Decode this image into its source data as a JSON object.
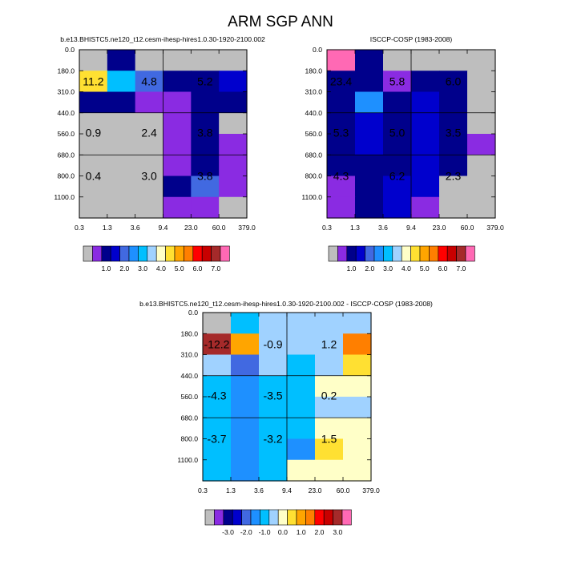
{
  "main_title": "ARM SGP ANN",
  "colors": {
    "missing": "#bebebe",
    "abs_scale": [
      "#bebebe",
      "#8a2be2",
      "#00008b",
      "#0000cd",
      "#4169e1",
      "#1e90ff",
      "#00bfff",
      "#a0d2ff",
      "#ffffc8",
      "#ffe032",
      "#ffa500",
      "#ff7f00",
      "#ff0000",
      "#c80000",
      "#a52a2a",
      "#ff69b4"
    ],
    "diff_scale": [
      "#bebebe",
      "#8a2be2",
      "#00008b",
      "#0000cd",
      "#4169e1",
      "#1e90ff",
      "#00bfff",
      "#a0d2ff",
      "#ffffc8",
      "#ffe032",
      "#ffa500",
      "#ff7f00",
      "#ff0000",
      "#c80000",
      "#a52a2a",
      "#ff69b4"
    ]
  },
  "chart_data": [
    {
      "type": "heatmap",
      "title": "b.e13.BHISTC5.ne120_t12.cesm-ihesp-hires1.0.30-1920-2100.002",
      "x_ticks": [
        "0.3",
        "1.3",
        "3.6",
        "9.4",
        "23.0",
        "60.0",
        "379.0"
      ],
      "y_ticks": [
        "0.0",
        "180.0",
        "310.0",
        "440.0",
        "560.0",
        "680.0",
        "800.0",
        "1100.0"
      ],
      "cells": [
        [
          -1,
          2,
          -1,
          -1,
          -1,
          -1
        ],
        [
          9,
          6,
          4,
          2,
          2,
          3
        ],
        [
          2,
          2,
          1,
          1,
          2,
          2
        ],
        [
          -1,
          -1,
          -1,
          1,
          2,
          -1
        ],
        [
          -1,
          -1,
          -1,
          1,
          2,
          1
        ],
        [
          -1,
          -1,
          -1,
          1,
          2,
          1
        ],
        [
          -1,
          -1,
          -1,
          2,
          4,
          1
        ],
        [
          -1,
          -1,
          -1,
          1,
          1,
          -1
        ]
      ],
      "labels": [
        {
          "text": "11.2",
          "col": 0.5,
          "row": 1.5
        },
        {
          "text": "4.8",
          "col": 2.5,
          "row": 1.5
        },
        {
          "text": "5.2",
          "col": 4.5,
          "row": 1.5
        },
        {
          "text": "0.9",
          "col": 0.5,
          "row": 3.95
        },
        {
          "text": "2.4",
          "col": 2.5,
          "row": 3.95
        },
        {
          "text": "3.8",
          "col": 4.5,
          "row": 3.95
        },
        {
          "text": "0.4",
          "col": 0.5,
          "row": 6.0
        },
        {
          "text": "3.0",
          "col": 2.5,
          "row": 6.0
        },
        {
          "text": "3.8",
          "col": 4.5,
          "row": 6.0
        }
      ]
    },
    {
      "type": "heatmap",
      "title": "ISCCP-COSP (1983-2008)",
      "x_ticks": [
        "0.3",
        "1.3",
        "3.6",
        "9.4",
        "23.0",
        "60.0",
        "379.0"
      ],
      "y_ticks": [
        "0.0",
        "180.0",
        "310.0",
        "440.0",
        "560.0",
        "680.0",
        "800.0",
        "1100.0"
      ],
      "cells": [
        [
          15,
          2,
          -1,
          -1,
          -1,
          -1
        ],
        [
          2,
          2,
          1,
          2,
          2,
          -1
        ],
        [
          2,
          5,
          2,
          3,
          2,
          -1
        ],
        [
          2,
          3,
          2,
          3,
          2,
          -1
        ],
        [
          2,
          3,
          2,
          3,
          2,
          1
        ],
        [
          2,
          2,
          2,
          3,
          2,
          -1
        ],
        [
          1,
          2,
          3,
          3,
          -1,
          -1
        ],
        [
          1,
          2,
          3,
          1,
          -1,
          -1
        ]
      ],
      "labels": [
        {
          "text": "23.4",
          "col": 0.5,
          "row": 1.5
        },
        {
          "text": "5.8",
          "col": 2.5,
          "row": 1.5
        },
        {
          "text": "6.0",
          "col": 4.5,
          "row": 1.5
        },
        {
          "text": "5.3",
          "col": 0.5,
          "row": 3.95
        },
        {
          "text": "5.0",
          "col": 2.5,
          "row": 3.95
        },
        {
          "text": "3.5",
          "col": 4.5,
          "row": 3.95
        },
        {
          "text": "4.3",
          "col": 0.5,
          "row": 6.0
        },
        {
          "text": "6.2",
          "col": 2.5,
          "row": 6.0
        },
        {
          "text": "2.3",
          "col": 4.5,
          "row": 6.0
        }
      ]
    },
    {
      "type": "heatmap",
      "title": "b.e13.BHISTC5.ne120_t12.cesm-ihesp-hires1.0.30-1920-2100.002 - ISCCP-COSP (1983-2008)",
      "x_ticks": [
        "0.3",
        "1.3",
        "3.6",
        "9.4",
        "23.0",
        "60.0",
        "379.0"
      ],
      "y_ticks": [
        "0.0",
        "180.0",
        "310.0",
        "440.0",
        "560.0",
        "680.0",
        "800.0",
        "1100.0"
      ],
      "cells": [
        [
          0,
          6,
          7,
          7,
          7,
          7
        ],
        [
          14,
          10,
          7,
          7,
          7,
          11
        ],
        [
          7,
          4,
          7,
          6,
          7,
          9
        ],
        [
          6,
          5,
          6,
          6,
          8,
          8
        ],
        [
          6,
          5,
          6,
          6,
          7,
          7
        ],
        [
          6,
          5,
          6,
          6,
          8,
          8
        ],
        [
          6,
          5,
          6,
          5,
          9,
          8
        ],
        [
          6,
          5,
          6,
          8,
          8,
          8
        ]
      ],
      "labels": [
        {
          "text": "-12.2",
          "col": 0.5,
          "row": 1.5
        },
        {
          "text": "-0.9",
          "col": 2.5,
          "row": 1.5
        },
        {
          "text": "1.2",
          "col": 4.5,
          "row": 1.5
        },
        {
          "text": "-4.3",
          "col": 0.5,
          "row": 3.95
        },
        {
          "text": "-3.5",
          "col": 2.5,
          "row": 3.95
        },
        {
          "text": "0.2",
          "col": 4.5,
          "row": 3.95
        },
        {
          "text": "-3.7",
          "col": 0.5,
          "row": 6.0
        },
        {
          "text": "-3.2",
          "col": 2.5,
          "row": 6.0
        },
        {
          "text": "1.5",
          "col": 4.5,
          "row": 6.0
        }
      ]
    }
  ],
  "colorbars": [
    {
      "labels": [
        "1.0",
        "2.0",
        "3.0",
        "4.0",
        "5.0",
        "6.0",
        "7.0"
      ]
    },
    {
      "labels": [
        "1.0",
        "2.0",
        "3.0",
        "4.0",
        "5.0",
        "6.0",
        "7.0"
      ]
    },
    {
      "labels": [
        "-3.0",
        "-2.0",
        "-1.0",
        "0.0",
        "1.0",
        "2.0",
        "3.0"
      ]
    }
  ]
}
